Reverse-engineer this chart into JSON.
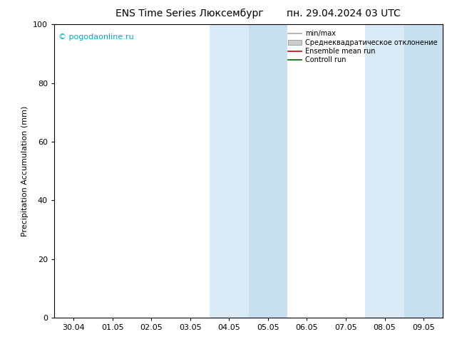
{
  "title_left": "ENS Time Series Люксембург",
  "title_right": "пн. 29.04.2024 03 UTC",
  "ylabel": "Precipitation Accumulation (mm)",
  "watermark": "© pogodaonline.ru",
  "watermark_color": "#00AACC",
  "ylim": [
    0,
    100
  ],
  "yticks": [
    0,
    20,
    40,
    60,
    80,
    100
  ],
  "x_labels": [
    "30.04",
    "01.05",
    "02.05",
    "03.05",
    "04.05",
    "05.05",
    "06.05",
    "07.05",
    "08.05",
    "09.05"
  ],
  "x_positions": [
    0,
    1,
    2,
    3,
    4,
    5,
    6,
    7,
    8,
    9
  ],
  "shaded_regions": [
    {
      "xmin": 3.5,
      "xmax": 4.5,
      "color": "#daeaf7"
    },
    {
      "xmin": 4.5,
      "xmax": 5.5,
      "color": "#c8dff0"
    },
    {
      "xmin": 7.5,
      "xmax": 8.5,
      "color": "#daeaf7"
    },
    {
      "xmin": 8.5,
      "xmax": 9.5,
      "color": "#c8dff0"
    }
  ],
  "legend_items": [
    {
      "label": "min/max",
      "type": "line",
      "color": "#aaaaaa",
      "linewidth": 1.2
    },
    {
      "label": "Среднеквадратическое отклонение",
      "type": "patch",
      "color": "#cccccc"
    },
    {
      "label": "Ensemble mean run",
      "type": "line",
      "color": "#cc0000",
      "linewidth": 1.2
    },
    {
      "label": "Controll run",
      "type": "line",
      "color": "#006600",
      "linewidth": 1.2
    }
  ],
  "bg_color": "#ffffff",
  "plot_bg_color": "#ffffff",
  "xlim": [
    -0.5,
    9.5
  ],
  "title_fontsize": 10,
  "ylabel_fontsize": 8,
  "tick_fontsize": 8,
  "legend_fontsize": 7,
  "watermark_fontsize": 8
}
